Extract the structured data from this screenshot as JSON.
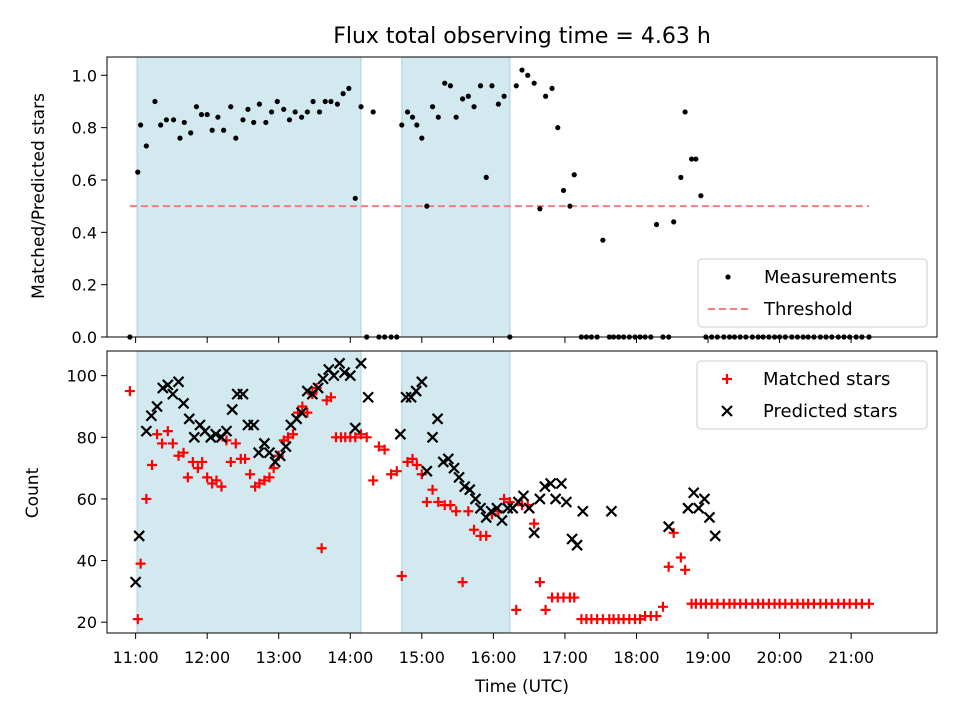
{
  "chart_data": [
    {
      "type": "scatter",
      "title": "Flux total observing time = 4.63 h",
      "ylabel": "Matched/Predicted stars",
      "xlabel": "",
      "ylim": [
        0,
        1.07
      ],
      "xlim": [
        10.6,
        22.2
      ],
      "yticks": [
        "0.0",
        "0.2",
        "0.4",
        "0.6",
        "0.8",
        "1.0"
      ],
      "ytick_values": [
        0,
        0.2,
        0.4,
        0.6,
        0.8,
        1.0
      ],
      "shaded_intervals": [
        [
          11.02,
          14.15
        ],
        [
          14.72,
          16.23
        ]
      ],
      "shade_color": "#d1e9ef",
      "threshold": {
        "name": "Threshold",
        "y": 0.5,
        "x_range": [
          10.92,
          21.25
        ],
        "color": "#f08080"
      },
      "series": [
        {
          "name": "Measurements",
          "color": "#000000",
          "x": [
            10.92,
            11.03,
            11.07,
            11.15,
            11.27,
            11.35,
            11.43,
            11.53,
            11.62,
            11.68,
            11.77,
            11.85,
            11.92,
            12.0,
            12.07,
            12.15,
            12.23,
            12.33,
            12.4,
            12.5,
            12.57,
            12.65,
            12.73,
            12.82,
            12.9,
            12.98,
            13.07,
            13.15,
            13.23,
            13.32,
            13.4,
            13.48,
            13.57,
            13.65,
            13.73,
            13.82,
            13.9,
            13.98,
            14.07,
            14.15,
            14.23,
            14.32,
            14.4,
            14.48,
            14.57,
            14.65,
            14.72,
            14.8,
            14.87,
            14.93,
            15.0,
            15.07,
            15.15,
            15.23,
            15.32,
            15.4,
            15.48,
            15.57,
            15.65,
            15.73,
            15.82,
            15.9,
            15.98,
            16.07,
            16.15,
            16.23,
            16.32,
            16.4,
            16.48,
            16.57,
            16.65,
            16.73,
            16.82,
            16.9,
            16.98,
            17.07,
            17.13,
            17.23,
            17.3,
            17.37,
            17.45,
            17.53,
            17.62,
            17.68,
            17.75,
            17.82,
            17.9,
            17.98,
            18.05,
            18.12,
            18.2,
            18.28,
            18.37,
            18.45,
            18.52,
            18.62,
            18.68,
            18.77,
            18.83,
            18.9,
            18.97,
            19.05,
            19.13,
            19.22,
            19.3,
            19.37,
            19.45,
            19.53,
            19.62,
            19.7,
            19.77,
            19.85,
            19.93,
            20.0,
            20.08,
            20.17,
            20.25,
            20.33,
            20.4,
            20.48,
            20.57,
            20.65,
            20.73,
            20.82,
            20.9,
            20.98,
            21.07,
            21.15,
            21.25
          ],
          "values": [
            0.0,
            0.63,
            0.81,
            0.73,
            0.9,
            0.81,
            0.83,
            0.83,
            0.76,
            0.82,
            0.78,
            0.88,
            0.85,
            0.85,
            0.79,
            0.84,
            0.79,
            0.88,
            0.76,
            0.83,
            0.87,
            0.82,
            0.89,
            0.82,
            0.86,
            0.9,
            0.87,
            0.83,
            0.86,
            0.84,
            0.86,
            0.9,
            0.86,
            0.9,
            0.9,
            0.89,
            0.93,
            0.95,
            0.53,
            0.88,
            0.0,
            0.86,
            0.0,
            0.0,
            0.0,
            0.0,
            0.81,
            0.86,
            0.84,
            0.81,
            0.76,
            0.5,
            0.88,
            0.84,
            0.97,
            0.96,
            0.84,
            0.91,
            0.92,
            0.88,
            0.96,
            0.61,
            0.96,
            0.89,
            0.92,
            0.0,
            0.96,
            1.02,
            1.0,
            0.97,
            0.49,
            0.92,
            0.95,
            0.8,
            0.56,
            0.5,
            0.62,
            0.0,
            0.0,
            0.0,
            0.0,
            0.37,
            0.0,
            0.0,
            0.0,
            0.0,
            0.0,
            0.0,
            0.0,
            0.0,
            0.0,
            0.43,
            0.0,
            0.0,
            0.44,
            0.61,
            0.86,
            0.68,
            0.68,
            0.54,
            0.0,
            0.0,
            0.0,
            0.0,
            0.0,
            0.0,
            0.0,
            0.0,
            0.0,
            0.0,
            0.0,
            0.0,
            0.0,
            0.0,
            0.0,
            0.0,
            0.0,
            0.0,
            0.0,
            0.0,
            0.0,
            0.0,
            0.0,
            0.0,
            0.0,
            0.0,
            0.0,
            0.0,
            0.0
          ]
        }
      ],
      "legend": {
        "placement": "bottom-right",
        "entries": [
          "Measurements",
          "Threshold"
        ]
      }
    },
    {
      "type": "scatter",
      "title": "",
      "ylabel": "Count",
      "xlabel": "Time (UTC)",
      "ylim": [
        16.5,
        108
      ],
      "xlim": [
        10.6,
        22.2
      ],
      "yticks": [
        "20",
        "40",
        "60",
        "80",
        "100"
      ],
      "ytick_values": [
        20,
        40,
        60,
        80,
        100
      ],
      "xticks": [
        "11:00",
        "12:00",
        "13:00",
        "14:00",
        "15:00",
        "16:00",
        "17:00",
        "18:00",
        "19:00",
        "20:00",
        "21:00"
      ],
      "xtick_values": [
        11,
        12,
        13,
        14,
        15,
        16,
        17,
        18,
        19,
        20,
        21
      ],
      "shaded_intervals": [
        [
          11.02,
          14.15
        ],
        [
          14.72,
          16.23
        ]
      ],
      "shade_color": "#d1e9ef",
      "series": [
        {
          "name": "Matched stars",
          "marker": "plus",
          "color": "#ff0000",
          "x": [
            10.92,
            11.03,
            11.07,
            11.15,
            11.23,
            11.3,
            11.37,
            11.45,
            11.52,
            11.6,
            11.67,
            11.73,
            11.8,
            11.87,
            11.93,
            12.0,
            12.07,
            12.13,
            12.2,
            12.27,
            12.33,
            12.4,
            12.47,
            12.53,
            12.6,
            12.67,
            12.73,
            12.8,
            12.87,
            12.93,
            13.0,
            13.07,
            13.13,
            13.2,
            13.27,
            13.33,
            13.4,
            13.47,
            13.53,
            13.6,
            13.67,
            13.73,
            13.8,
            13.87,
            13.93,
            14.0,
            14.07,
            14.15,
            14.23,
            14.32,
            14.4,
            14.48,
            14.57,
            14.65,
            14.72,
            14.8,
            14.87,
            14.93,
            15.0,
            15.07,
            15.15,
            15.23,
            15.32,
            15.4,
            15.48,
            15.57,
            15.65,
            15.73,
            15.82,
            15.9,
            15.98,
            16.07,
            16.15,
            16.23,
            16.32,
            16.4,
            16.48,
            16.57,
            16.65,
            16.73,
            16.82,
            16.9,
            16.98,
            17.07,
            17.13,
            17.23,
            17.3,
            17.37,
            17.45,
            17.53,
            17.62,
            17.68,
            17.75,
            17.82,
            17.9,
            17.98,
            18.05,
            18.12,
            18.2,
            18.28,
            18.37,
            18.45,
            18.52,
            18.62,
            18.68,
            18.77,
            18.83,
            18.9,
            18.97,
            19.05,
            19.13,
            19.22,
            19.3,
            19.37,
            19.45,
            19.53,
            19.62,
            19.7,
            19.77,
            19.85,
            19.93,
            20.0,
            20.08,
            20.17,
            20.25,
            20.33,
            20.4,
            20.48,
            20.57,
            20.65,
            20.73,
            20.82,
            20.9,
            20.98,
            21.07,
            21.15,
            21.25
          ],
          "values": [
            95,
            21,
            39,
            60,
            71,
            81,
            78,
            82,
            78,
            74,
            75,
            67,
            72,
            70,
            72,
            67,
            65,
            66,
            64,
            79,
            72,
            78,
            73,
            73,
            68,
            64,
            65,
            66,
            67,
            70,
            74,
            79,
            80,
            81,
            88,
            90,
            88,
            94,
            96,
            44,
            92,
            93,
            80,
            80,
            80,
            80,
            80,
            81,
            80,
            66,
            77,
            76,
            68,
            69,
            35,
            72,
            73,
            71,
            68,
            59,
            63,
            59,
            58,
            58,
            56,
            33,
            56,
            50,
            48,
            48,
            55,
            56,
            60,
            59,
            24,
            58,
            58,
            52,
            33,
            24,
            28,
            28,
            28,
            28,
            28,
            21,
            21,
            21,
            21,
            21,
            21,
            21,
            21,
            21,
            21,
            21,
            21,
            22,
            22,
            22,
            25,
            38,
            49,
            41,
            37,
            26,
            26,
            26,
            26,
            26,
            26,
            26,
            26,
            26,
            26,
            26,
            26,
            26,
            26,
            26,
            26,
            26,
            26,
            26,
            26,
            26,
            26,
            26,
            26,
            26,
            26,
            26,
            26,
            26,
            26,
            26,
            26
          ]
        },
        {
          "name": "Predicted stars",
          "marker": "x",
          "color": "#000000",
          "x": [
            11.0,
            11.05,
            11.15,
            11.22,
            11.3,
            11.38,
            11.45,
            11.52,
            11.6,
            11.67,
            11.75,
            11.82,
            11.9,
            11.97,
            12.05,
            12.12,
            12.2,
            12.27,
            12.35,
            12.42,
            12.5,
            12.57,
            12.65,
            12.72,
            12.8,
            12.87,
            12.95,
            13.02,
            13.1,
            13.17,
            13.25,
            13.32,
            13.4,
            13.47,
            13.55,
            13.62,
            13.7,
            13.77,
            13.85,
            13.92,
            14.0,
            14.07,
            14.15,
            14.25,
            14.7,
            14.78,
            14.85,
            14.92,
            15.0,
            15.07,
            15.15,
            15.22,
            15.3,
            15.37,
            15.45,
            15.52,
            15.6,
            15.67,
            15.75,
            15.82,
            15.9,
            15.97,
            16.05,
            16.12,
            16.2,
            16.27,
            16.35,
            16.42,
            16.5,
            16.57,
            16.65,
            16.72,
            16.8,
            16.87,
            16.95,
            17.02,
            17.1,
            17.17,
            17.25,
            17.65,
            18.45,
            18.72,
            18.8,
            18.87,
            18.95,
            19.02,
            19.1
          ],
          "values": [
            33,
            48,
            82,
            87,
            90,
            96,
            97,
            94,
            98,
            91,
            86,
            80,
            84,
            82,
            80,
            81,
            80,
            82,
            89,
            94,
            94,
            84,
            84,
            75,
            78,
            75,
            72,
            74,
            77,
            84,
            86,
            88,
            95,
            94,
            96,
            99,
            102,
            100,
            104,
            101,
            100,
            83,
            104,
            93,
            81,
            93,
            93,
            95,
            98,
            69,
            80,
            86,
            72,
            73,
            70,
            67,
            64,
            63,
            60,
            57,
            54,
            56,
            57,
            53,
            57,
            57,
            59,
            61,
            57,
            49,
            60,
            64,
            65,
            60,
            65,
            59,
            47,
            45,
            56,
            56,
            51,
            57,
            62,
            57,
            60,
            54,
            48
          ]
        }
      ],
      "legend": {
        "placement": "top-right",
        "entries": [
          "Matched stars",
          "Predicted stars"
        ]
      }
    }
  ]
}
